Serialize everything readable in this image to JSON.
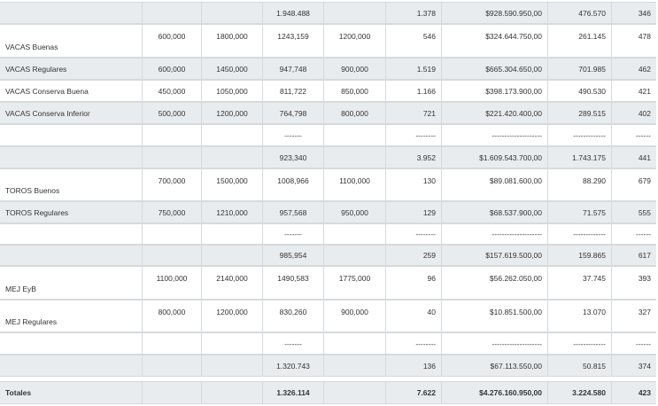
{
  "table": {
    "rows": [
      [
        null,
        null,
        null,
        "1.948.488",
        null,
        "1.378",
        "$928.590.950,00",
        "476.570",
        "346"
      ],
      [
        "VACAS Buenas",
        "600,000",
        "1800,000",
        "1243,159",
        "1200,000",
        "546",
        "$324.644.750,00",
        "261.145",
        "478"
      ],
      [
        "VACAS Regulares",
        "600,000",
        "1450,000",
        "947,748",
        "900,000",
        "1.519",
        "$665.304.650,00",
        "701.985",
        "462"
      ],
      [
        "VACAS Conserva Buena",
        "450,000",
        "1050,000",
        "811,722",
        "850,000",
        "1.166",
        "$398.173.900,00",
        "490.530",
        "421"
      ],
      [
        "VACAS Conserva Inferior",
        "500,000",
        "1200,000",
        "764,798",
        "800,000",
        "721",
        "$221.420.400,00",
        "289.515",
        "402"
      ],
      [
        null,
        null,
        null,
        "-------",
        null,
        "--------",
        "--------------------",
        "-------------",
        "------"
      ],
      [
        null,
        null,
        null,
        "923,340",
        null,
        "3.952",
        "$1.609.543.700,00",
        "1.743.175",
        "441"
      ],
      [
        "TOROS Buenos",
        "700,000",
        "1500,000",
        "1008,966",
        "1100,000",
        "130",
        "$89.081.600,00",
        "88.290",
        "679"
      ],
      [
        "TOROS Regulares",
        "750,000",
        "1210,000",
        "957,568",
        "950,000",
        "129",
        "$68.537.900,00",
        "71.575",
        "555"
      ],
      [
        null,
        null,
        null,
        "-------",
        null,
        "--------",
        "--------------------",
        "-------------",
        "------"
      ],
      [
        null,
        null,
        null,
        "985,954",
        null,
        "259",
        "$157.619.500,00",
        "159.865",
        "617"
      ],
      [
        "MEJ EyB",
        "1100,000",
        "2140,000",
        "1490,583",
        "1775,000",
        "96",
        "$56.262.050,00",
        "37.745",
        "393"
      ],
      [
        "MEJ Regulares",
        "800,000",
        "1200,000",
        "830,260",
        "900,000",
        "40",
        "$10.851.500,00",
        "13.070",
        "327"
      ],
      [
        null,
        null,
        null,
        "-------",
        null,
        "--------",
        "--------------------",
        "-------------",
        "------"
      ],
      [
        null,
        null,
        null,
        "1.320.743",
        null,
        "136",
        "$67.113.550,00",
        "50.815",
        "374"
      ]
    ],
    "totals": [
      "Totales",
      null,
      null,
      "1.326.114",
      null,
      "7.622",
      "$4.276.160.950,00",
      "3.224.580",
      "423"
    ]
  }
}
